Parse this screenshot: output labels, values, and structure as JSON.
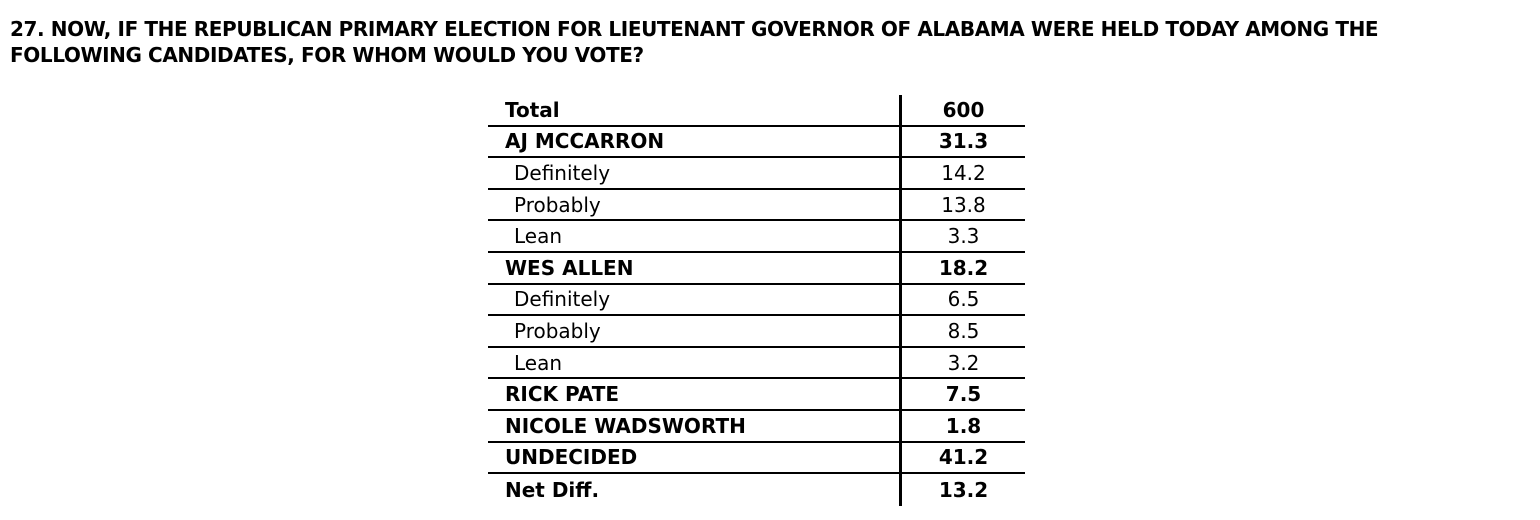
{
  "header": {
    "title_lines": [
      "27. NOW, IF THE REPUBLICAN PRIMARY ELECTION FOR LIEUTENANT GOVERNOR OF ALABAMA WERE HELD TODAY AMONG THE",
      "FOLLOWING CANDIDATES, FOR WHOM WOULD YOU VOTE?"
    ]
  },
  "table": {
    "columns": [
      "label",
      "value"
    ],
    "rows": [
      {
        "label": "Total",
        "value": "600",
        "style": "header"
      },
      {
        "label": "AJ MCCARRON",
        "value": "31.3",
        "style": "header"
      },
      {
        "label": "Definitely",
        "value": "14.2",
        "style": "sub"
      },
      {
        "label": "Probably",
        "value": "13.8",
        "style": "sub"
      },
      {
        "label": "Lean",
        "value": "3.3",
        "style": "sub"
      },
      {
        "label": "WES ALLEN",
        "value": "18.2",
        "style": "header"
      },
      {
        "label": "Definitely",
        "value": "6.5",
        "style": "sub"
      },
      {
        "label": "Probably",
        "value": "8.5",
        "style": "sub"
      },
      {
        "label": "Lean",
        "value": "3.2",
        "style": "sub"
      },
      {
        "label": "RICK PATE",
        "value": "7.5",
        "style": "header"
      },
      {
        "label": "NICOLE WADSWORTH",
        "value": "1.8",
        "style": "header"
      },
      {
        "label": "UNDECIDED",
        "value": "41.2",
        "style": "header"
      },
      {
        "label": "Net Diff.",
        "value": "13.2",
        "style": "header"
      }
    ]
  },
  "colors": {
    "text": "#000000",
    "background": "#ffffff",
    "border": "#000000"
  }
}
